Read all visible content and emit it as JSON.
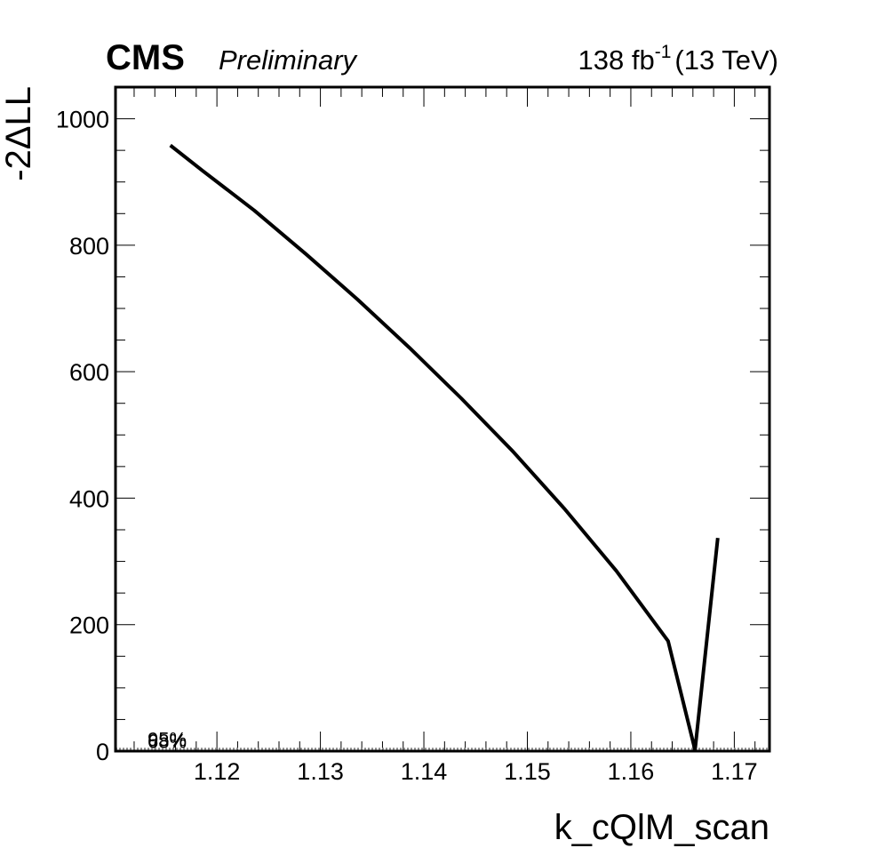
{
  "header": {
    "experiment": "CMS",
    "status": "Preliminary",
    "lumi_main": "138 fb",
    "lumi_sup": "-1",
    "lumi_energy": "(13 TeV)"
  },
  "chart_data": {
    "type": "line",
    "xlabel": "k_cQlM_scan",
    "ylabel": "-2ΔLL",
    "xlim": [
      1.1102,
      1.1734
    ],
    "ylim": [
      0,
      1050
    ],
    "xticks": [
      1.12,
      1.13,
      1.14,
      1.15,
      1.16,
      1.17
    ],
    "xtick_labels": [
      "1.12",
      "1.13",
      "1.14",
      "1.15",
      "1.16",
      "1.17"
    ],
    "yticks": [
      0,
      200,
      400,
      600,
      800,
      1000
    ],
    "ytick_labels": [
      "0",
      "200",
      "400",
      "600",
      "800",
      "1000"
    ],
    "grid": false,
    "series": [
      {
        "x": [
          1.1155,
          1.1186,
          1.1236,
          1.1286,
          1.1336,
          1.1386,
          1.1436,
          1.1486,
          1.1536,
          1.1586,
          1.1636,
          1.1662,
          1.1684
        ],
        "y": [
          958,
          918,
          855,
          786,
          714,
          638,
          558,
          474,
          383,
          285,
          174,
          2,
          337
        ]
      }
    ],
    "reference_lines": [
      {
        "label": "68%",
        "y": 1.0
      },
      {
        "label": "95%",
        "y": 3.84
      }
    ]
  }
}
